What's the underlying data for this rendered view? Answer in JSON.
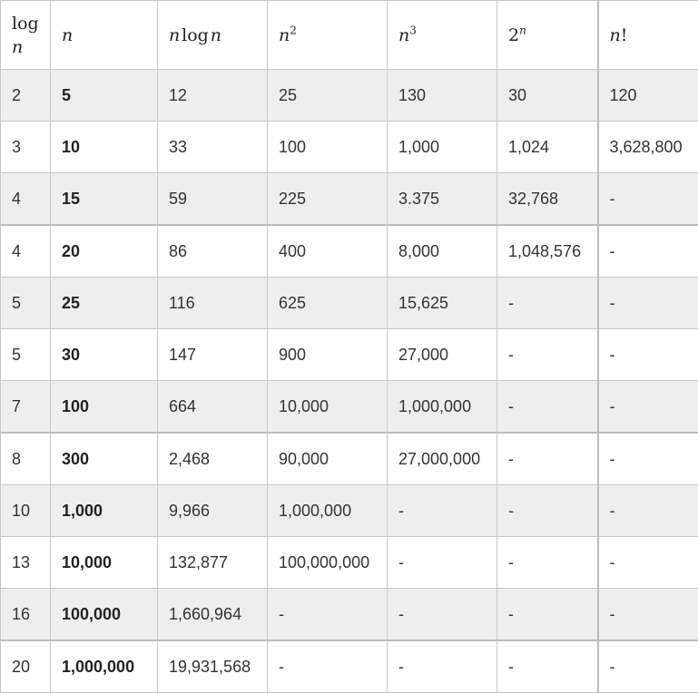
{
  "headers": {
    "log_n": {
      "fn": "log",
      "var": "n"
    },
    "n": {
      "var": "n"
    },
    "n_log_n": {
      "var1": "n",
      "fn": "log",
      "var2": "n"
    },
    "n2": {
      "base": "n",
      "exp": "2"
    },
    "n3": {
      "base": "n",
      "exp": "3"
    },
    "pow2n": {
      "base": "2",
      "exp": "n"
    },
    "fact": {
      "var": "n",
      "sym": "!"
    }
  },
  "rows": [
    [
      "2",
      "5",
      "12",
      "25",
      "130",
      "30",
      "120"
    ],
    [
      "3",
      "10",
      "33",
      "100",
      "1,000",
      "1,024",
      "3,628,800"
    ],
    [
      "4",
      "15",
      "59",
      "225",
      "3.375",
      "32,768",
      "-"
    ],
    [
      "4",
      "20",
      "86",
      "400",
      "8,000",
      "1,048,576",
      "-"
    ],
    [
      "5",
      "25",
      "116",
      "625",
      "15,625",
      "-",
      "-"
    ],
    [
      "5",
      "30",
      "147",
      "900",
      "27,000",
      "-",
      "-"
    ],
    [
      "7",
      "100",
      "664",
      "10,000",
      "1,000,000",
      "-",
      "-"
    ],
    [
      "8",
      "300",
      "2,468",
      "90,000",
      "27,000,000",
      "-",
      "-"
    ],
    [
      "10",
      "1,000",
      "9,966",
      "1,000,000",
      "-",
      "-",
      "-"
    ],
    [
      "13",
      "10,000",
      "132,877",
      "100,000,000",
      "-",
      "-",
      "-"
    ],
    [
      "16",
      "100,000",
      "1,660,964",
      "-",
      "-",
      "-",
      "-"
    ],
    [
      "20",
      "1,000,000",
      "19,931,568",
      "-",
      "-",
      "-",
      "-"
    ]
  ]
}
